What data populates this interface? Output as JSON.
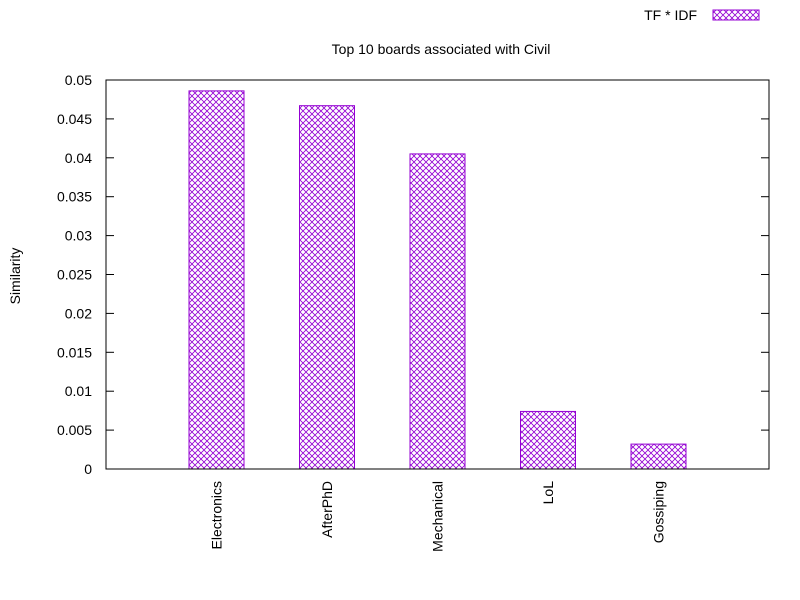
{
  "chart_data": {
    "type": "bar",
    "title": "Top 10 boards associated with Civil",
    "xlabel": "",
    "ylabel": "Similarity",
    "categories": [
      "Electronics",
      "AfterPhD",
      "Mechanical",
      "LoL",
      "Gossiping"
    ],
    "series": [
      {
        "name": "TF * IDF",
        "values": [
          0.0486,
          0.0467,
          0.0405,
          0.0074,
          0.0032
        ],
        "color": "#9400d3",
        "pattern": "crosshatch"
      }
    ],
    "ylim": [
      0,
      0.05
    ],
    "yticks": [
      "0",
      "0.005",
      "0.01",
      "0.015",
      "0.02",
      "0.025",
      "0.03",
      "0.035",
      "0.04",
      "0.045",
      "0.05"
    ],
    "grid": false,
    "legend_position": "top-right"
  }
}
